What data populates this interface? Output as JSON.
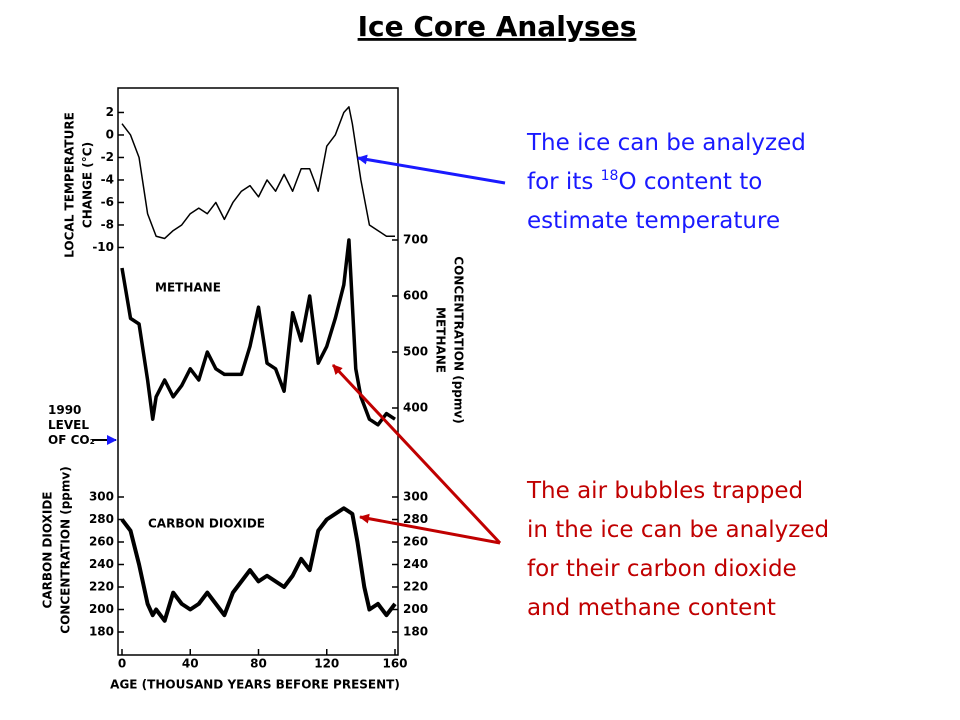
{
  "title": "Ice Core Analyses",
  "blue_note": {
    "lines": [
      "The ice can be analyzed",
      [
        "for its ",
        "18",
        "O content to"
      ],
      "estimate temperature"
    ]
  },
  "red_note": {
    "lines": [
      "The air bubbles trapped",
      "in the ice can be analyzed",
      "for their carbon dioxide",
      "and methane content"
    ]
  },
  "side_note": [
    "1990",
    "LEVEL",
    "OF CO₂"
  ],
  "chart_data": [
    {
      "type": "line",
      "ylabel": [
        "LOCAL TEMPERATURE",
        "CHANGE (°C)"
      ],
      "color": "#000000",
      "xlim": [
        0,
        160
      ],
      "ylim": [
        -10.5,
        3.5
      ],
      "yticks": [
        2,
        0,
        -2,
        -4,
        -6,
        -8,
        -10
      ],
      "x": [
        0,
        5,
        10,
        15,
        20,
        25,
        30,
        35,
        40,
        45,
        50,
        55,
        60,
        65,
        70,
        75,
        80,
        85,
        90,
        95,
        100,
        105,
        110,
        115,
        120,
        125,
        130,
        133,
        135,
        140,
        145,
        150,
        155,
        160
      ],
      "values": [
        1,
        0,
        -2,
        -7,
        -9,
        -9.2,
        -8.5,
        -8,
        -7,
        -6.5,
        -7,
        -6,
        -7.5,
        -6,
        -5,
        -4.5,
        -5.5,
        -4,
        -5,
        -3.5,
        -5,
        -3,
        -3,
        -5,
        -1,
        0,
        2,
        2.5,
        1,
        -4,
        -8,
        -8.5,
        -9,
        -9
      ]
    },
    {
      "type": "line",
      "label": "METHANE",
      "ylabel": [
        "METHANE",
        "CONCENTRATION (ppmv)"
      ],
      "color": "#000000",
      "xlim": [
        0,
        160
      ],
      "ylim": [
        330,
        730
      ],
      "yticks": [
        700,
        600,
        500,
        400
      ],
      "x": [
        0,
        5,
        10,
        15,
        18,
        20,
        25,
        30,
        35,
        40,
        45,
        50,
        55,
        60,
        65,
        70,
        75,
        80,
        85,
        90,
        95,
        100,
        105,
        110,
        115,
        120,
        125,
        130,
        133,
        137,
        140,
        145,
        150,
        155,
        160
      ],
      "values": [
        650,
        560,
        550,
        450,
        380,
        420,
        450,
        420,
        440,
        470,
        450,
        500,
        470,
        460,
        460,
        460,
        510,
        580,
        480,
        470,
        430,
        570,
        520,
        600,
        480,
        510,
        560,
        620,
        700,
        470,
        420,
        380,
        370,
        390,
        380
      ]
    },
    {
      "type": "line",
      "label": "CARBON DIOXIDE",
      "ylabel": [
        "CARBON DIOXIDE",
        "CONCENTRATION (ppmv)"
      ],
      "xlabel": "AGE (THOUSAND YEARS BEFORE PRESENT)",
      "color": "#000000",
      "xlim": [
        0,
        160
      ],
      "xticks": [
        0,
        40,
        80,
        120,
        160
      ],
      "ylim": [
        170,
        310
      ],
      "yticks": [
        300,
        280,
        260,
        240,
        220,
        200,
        180
      ],
      "x": [
        0,
        5,
        10,
        15,
        18,
        20,
        25,
        30,
        35,
        40,
        45,
        50,
        55,
        60,
        65,
        70,
        75,
        80,
        85,
        90,
        95,
        100,
        105,
        110,
        115,
        120,
        125,
        130,
        135,
        138,
        142,
        145,
        150,
        155,
        160
      ],
      "values": [
        280,
        270,
        240,
        205,
        195,
        200,
        190,
        215,
        205,
        200,
        205,
        215,
        205,
        195,
        215,
        225,
        235,
        225,
        230,
        225,
        220,
        230,
        245,
        235,
        270,
        280,
        285,
        290,
        285,
        260,
        220,
        200,
        205,
        195,
        205
      ]
    }
  ]
}
